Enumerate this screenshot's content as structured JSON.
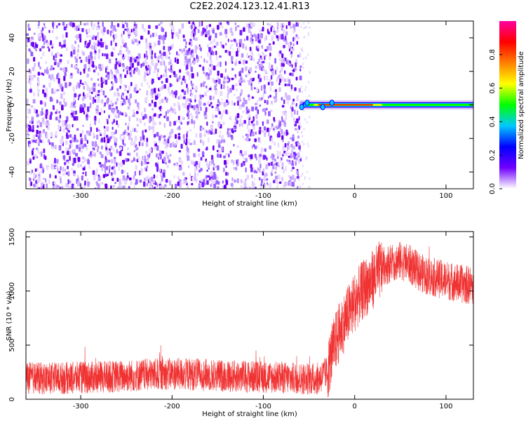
{
  "title": "C2E2.2024.123.12.41.R13",
  "colors": {
    "background": "#ffffff",
    "snr_series": "#f03232",
    "axis": "#000000"
  },
  "chart_data": [
    {
      "type": "heatmap",
      "name": "spectrogram",
      "xlabel": "Height of straight line (km)",
      "ylabel": "Frequency (Hz)",
      "xlim": [
        -360,
        130
      ],
      "ylim": [
        -50,
        50
      ],
      "xticks": [
        -300,
        -200,
        -100,
        0,
        100
      ],
      "yticks": [
        -40,
        -20,
        0,
        20,
        40
      ],
      "noise_region_x": [
        -360,
        -60
      ],
      "signal_line": {
        "frequency": 0,
        "x_start": -60,
        "x_end": 130
      },
      "colorbar": {
        "label": "Normalized spectral amplitude",
        "range": [
          0,
          1
        ],
        "ticks": [
          0.0,
          0.2,
          0.4,
          0.6,
          0.8
        ],
        "tick_labels": [
          "0.0",
          "0.2",
          "0.4",
          "0.6",
          "0.8"
        ],
        "colormap": [
          "#ffffff",
          "#7000ff",
          "#0000ff",
          "#00c8ff",
          "#00ff00",
          "#ffff00",
          "#ff8000",
          "#ff0000",
          "#ff00a0"
        ]
      }
    },
    {
      "type": "line",
      "name": "snr",
      "xlabel": "Height of straight line (km)",
      "ylabel": "SNR (10 * v/v)",
      "xlim": [
        -360,
        130
      ],
      "ylim": [
        0,
        1550
      ],
      "xticks": [
        -300,
        -200,
        -100,
        0,
        100
      ],
      "yticks": [
        0,
        500,
        1000,
        1500
      ],
      "x": [
        -360,
        -340,
        -320,
        -300,
        -280,
        -260,
        -240,
        -220,
        -200,
        -180,
        -160,
        -140,
        -120,
        -100,
        -80,
        -60,
        -40,
        -30,
        -25,
        -20,
        -15,
        -10,
        -5,
        0,
        10,
        20,
        30,
        40,
        50,
        60,
        70,
        80,
        90,
        100,
        110,
        120,
        130
      ],
      "y": [
        200,
        190,
        195,
        200,
        205,
        210,
        220,
        230,
        235,
        230,
        225,
        215,
        210,
        205,
        200,
        190,
        190,
        250,
        420,
        560,
        650,
        740,
        820,
        900,
        1020,
        1110,
        1220,
        1260,
        1280,
        1250,
        1180,
        1140,
        1120,
        1100,
        1080,
        1060,
        1050
      ]
    }
  ]
}
